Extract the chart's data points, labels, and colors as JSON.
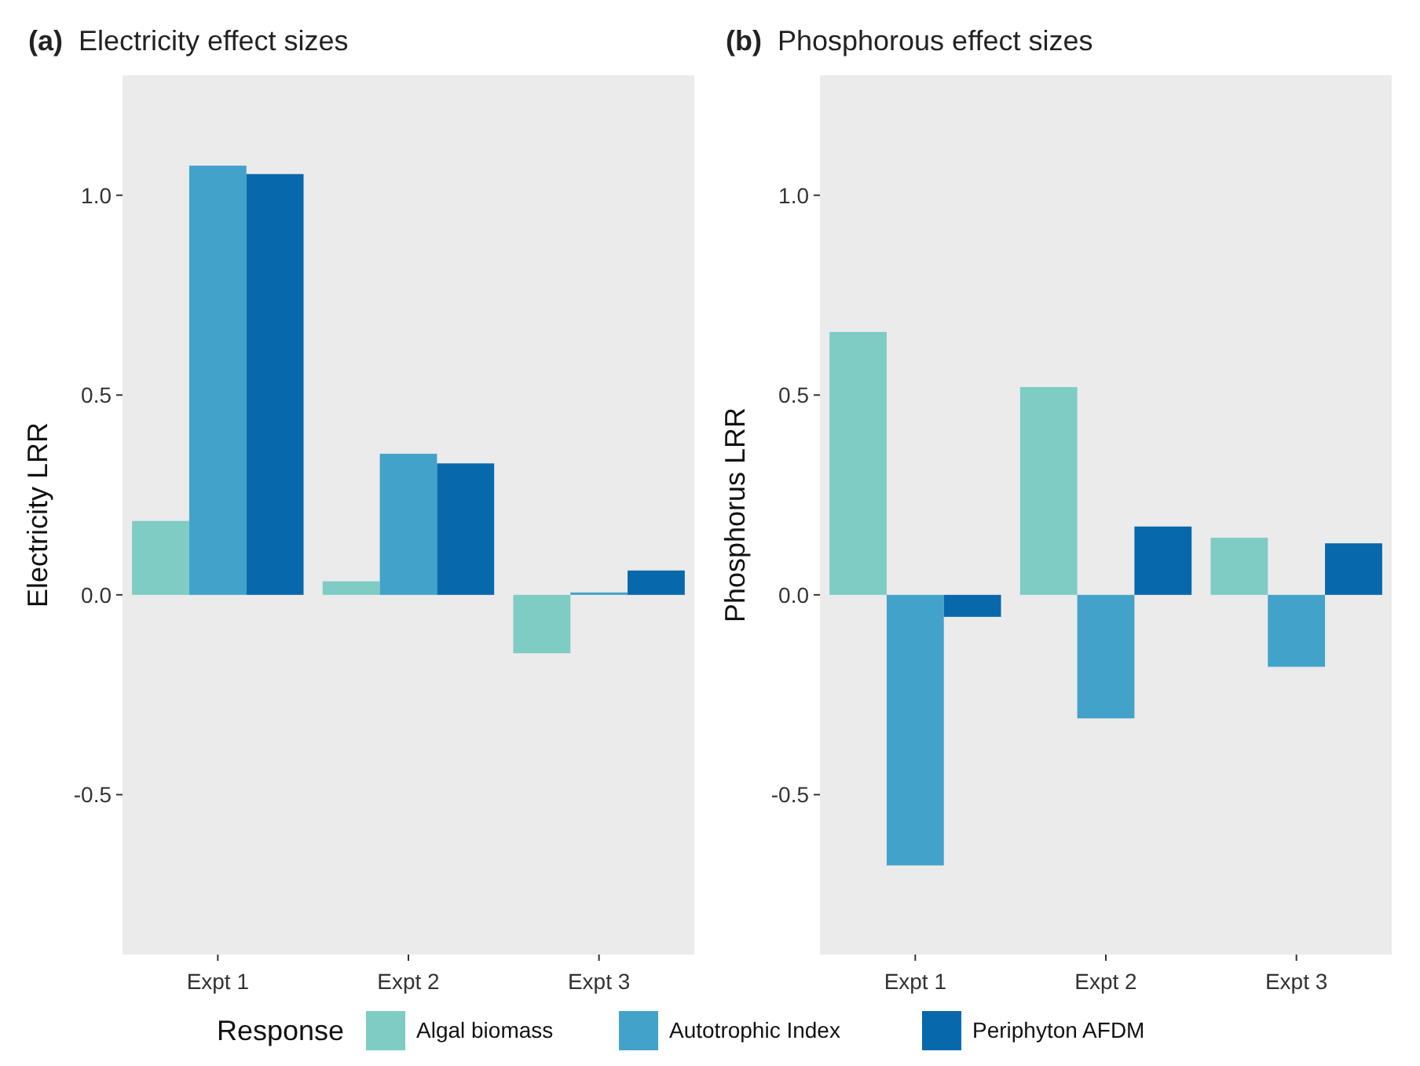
{
  "chart_data": [
    {
      "type": "bar",
      "title": "(a) Electricity effect sizes",
      "ylabel": "Electricity LRR",
      "categories": [
        "Expt 1",
        "Expt 2",
        "Expt 3"
      ],
      "ylim": [
        -0.9,
        1.3
      ],
      "yticks": [
        {
          "value": -0.5,
          "label": "-0.5"
        },
        {
          "value": 0,
          "label": "0.0"
        },
        {
          "value": 0.5,
          "label": "0.5"
        },
        {
          "value": 1,
          "label": "1.0"
        }
      ],
      "legend": "bottom",
      "legend_title": "Response",
      "series": [
        {
          "name": "Algal biomass",
          "color": "#7eccc4",
          "values": [
            0.185,
            0.034,
            -0.146
          ]
        },
        {
          "name": "Autotrophic Index",
          "color": "#43a2ca",
          "values": [
            1.074,
            0.353,
            0.006
          ]
        },
        {
          "name": "Periphyton AFDM",
          "color": "#0868ac",
          "values": [
            1.053,
            0.329,
            0.061
          ]
        }
      ]
    },
    {
      "type": "bar",
      "title": "(b) Phosphorous effect sizes",
      "ylabel": "Phosphorus LRR",
      "categories": [
        "Expt 1",
        "Expt 2",
        "Expt 3"
      ],
      "ylim": [
        -0.9,
        1.3
      ],
      "yticks": [
        {
          "value": -0.5,
          "label": "-0.5"
        },
        {
          "value": 0,
          "label": "0.0"
        },
        {
          "value": 0.5,
          "label": "0.5"
        },
        {
          "value": 1,
          "label": "1.0"
        }
      ],
      "series": [
        {
          "color": "#7eccc4",
          "values": [
            0.658,
            0.52,
            0.143
          ]
        },
        {
          "color": "#43a2ca",
          "values": [
            -0.677,
            -0.309,
            -0.18
          ]
        },
        {
          "color": "#0868ac",
          "values": [
            -0.055,
            0.171,
            0.129
          ]
        }
      ]
    }
  ]
}
